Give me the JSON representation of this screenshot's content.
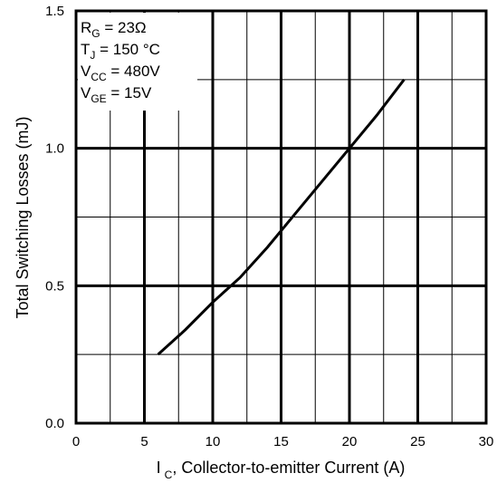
{
  "chart_data": {
    "type": "line",
    "xlabel_main": "I",
    "xlabel_sub": "C",
    "xlabel_rest": ", Collector-to-emitter Current (A)",
    "ylabel": "Total Switching Losses (mJ)",
    "xlim": [
      0,
      30
    ],
    "ylim": [
      0,
      1.5
    ],
    "x_ticks": [
      0,
      5,
      10,
      15,
      20,
      25,
      30
    ],
    "x_tick_labels": [
      "0",
      "5",
      "10",
      "15",
      "20",
      "25",
      "30"
    ],
    "y_ticks": [
      0,
      0.5,
      1.0,
      1.5
    ],
    "y_tick_labels": [
      "0.0",
      "0.5",
      "1.0",
      "1.5"
    ],
    "grid": true,
    "conditions": [
      {
        "sym": "R",
        "sub": "G",
        "rest": " = 23Ω"
      },
      {
        "sym": "T",
        "sub": "J",
        "rest": " = 150 °C"
      },
      {
        "sym": "V",
        "sub": "CC",
        "rest": " = 480V"
      },
      {
        "sym": "V",
        "sub": "GE",
        "rest": " = 15V"
      }
    ],
    "series": [
      {
        "x": [
          6,
          8,
          10,
          12,
          14,
          16,
          18,
          20,
          22,
          24
        ],
        "y": [
          0.25,
          0.34,
          0.44,
          0.53,
          0.64,
          0.76,
          0.88,
          1.0,
          1.12,
          1.25
        ]
      }
    ]
  }
}
